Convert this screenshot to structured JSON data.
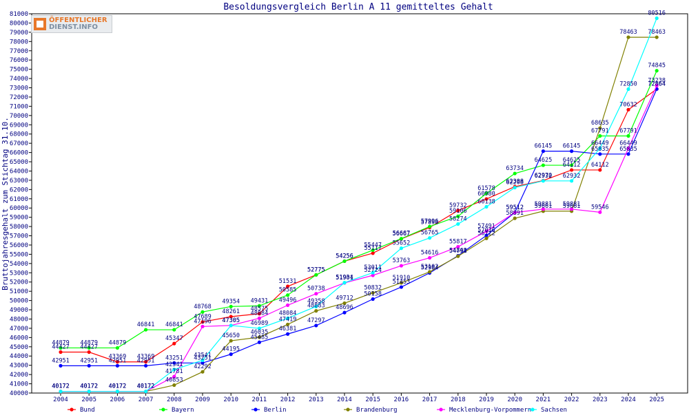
{
  "logo": {
    "line1": "ÖFFENTLICHER",
    "line2": "DIENST.INFO"
  },
  "chart_data": {
    "type": "line",
    "title": "Besoldungsvergleich Berlin A 11 gemitteltes Gehalt",
    "xlabel": "",
    "ylabel": "Bruttojahresgehalt zum Stichtag 31.10.",
    "ylim": [
      40000,
      81000
    ],
    "ytick_step": 1000,
    "grid": false,
    "legend_position": "bottom",
    "categories": [
      "2004",
      "2005",
      "2006",
      "2007",
      "2008",
      "2009",
      "2010",
      "2011",
      "2012",
      "2013",
      "2014",
      "2015",
      "2016",
      "2017",
      "2018",
      "2019",
      "2020",
      "2021",
      "2022",
      "2023",
      "2024",
      "2025"
    ],
    "series": [
      {
        "name": "Bund",
        "color": "#ff0000",
        "values": [
          44427,
          44427,
          43369,
          43369,
          45347,
          47689,
          48261,
          48575,
          51531,
          52775,
          54256,
          55117,
          56667,
          57898,
          59732,
          60980,
          62308,
          62970,
          64112,
          64112,
          70632,
          72864
        ]
      },
      {
        "name": "Bayern",
        "color": "#00ff00",
        "values": [
          44879,
          44879,
          44879,
          46841,
          46841,
          48768,
          49354,
          49431,
          50585,
          52775,
          54256,
          55447,
          56687,
          57996,
          59106,
          61578,
          63734,
          64625,
          64625,
          67791,
          67791,
          74845
        ]
      },
      {
        "name": "Berlin",
        "color": "#0000ff",
        "values": [
          42951,
          42951,
          42951,
          42951,
          43251,
          43251,
          44195,
          45485,
          46381,
          47297,
          48696,
          50158,
          51453,
          52984,
          54848,
          57036,
          59512,
          66145,
          66145,
          65835,
          65835,
          72864
        ]
      },
      {
        "name": "Brandenburg",
        "color": "#808000",
        "values": [
          40172,
          40172,
          40172,
          40172,
          40853,
          42292,
          45650,
          46035,
          47419,
          48883,
          49712,
          50832,
          51910,
          53102,
          54791,
          56722,
          58891,
          59661,
          59661,
          68635,
          78463,
          78463
        ]
      },
      {
        "name": "Mecklenburg-Vorpommern",
        "color": "#ff00ff",
        "values": [
          40172,
          40172,
          40172,
          40172,
          41781,
          47196,
          47305,
          48084,
          49496,
          50738,
          51901,
          52724,
          53763,
          54616,
          55817,
          57491,
          59512,
          59881,
          59881,
          59546,
          66449,
          73238
        ]
      },
      {
        "name": "Sachsen",
        "color": "#00ffff",
        "values": [
          40172,
          40172,
          40172,
          40172,
          42541,
          43541,
          47305,
          46989,
          48084,
          49358,
          51934,
          53011,
          55652,
          56765,
          58274,
          60138,
          62208,
          62932,
          62932,
          66449,
          72850,
          80516
        ]
      }
    ]
  }
}
